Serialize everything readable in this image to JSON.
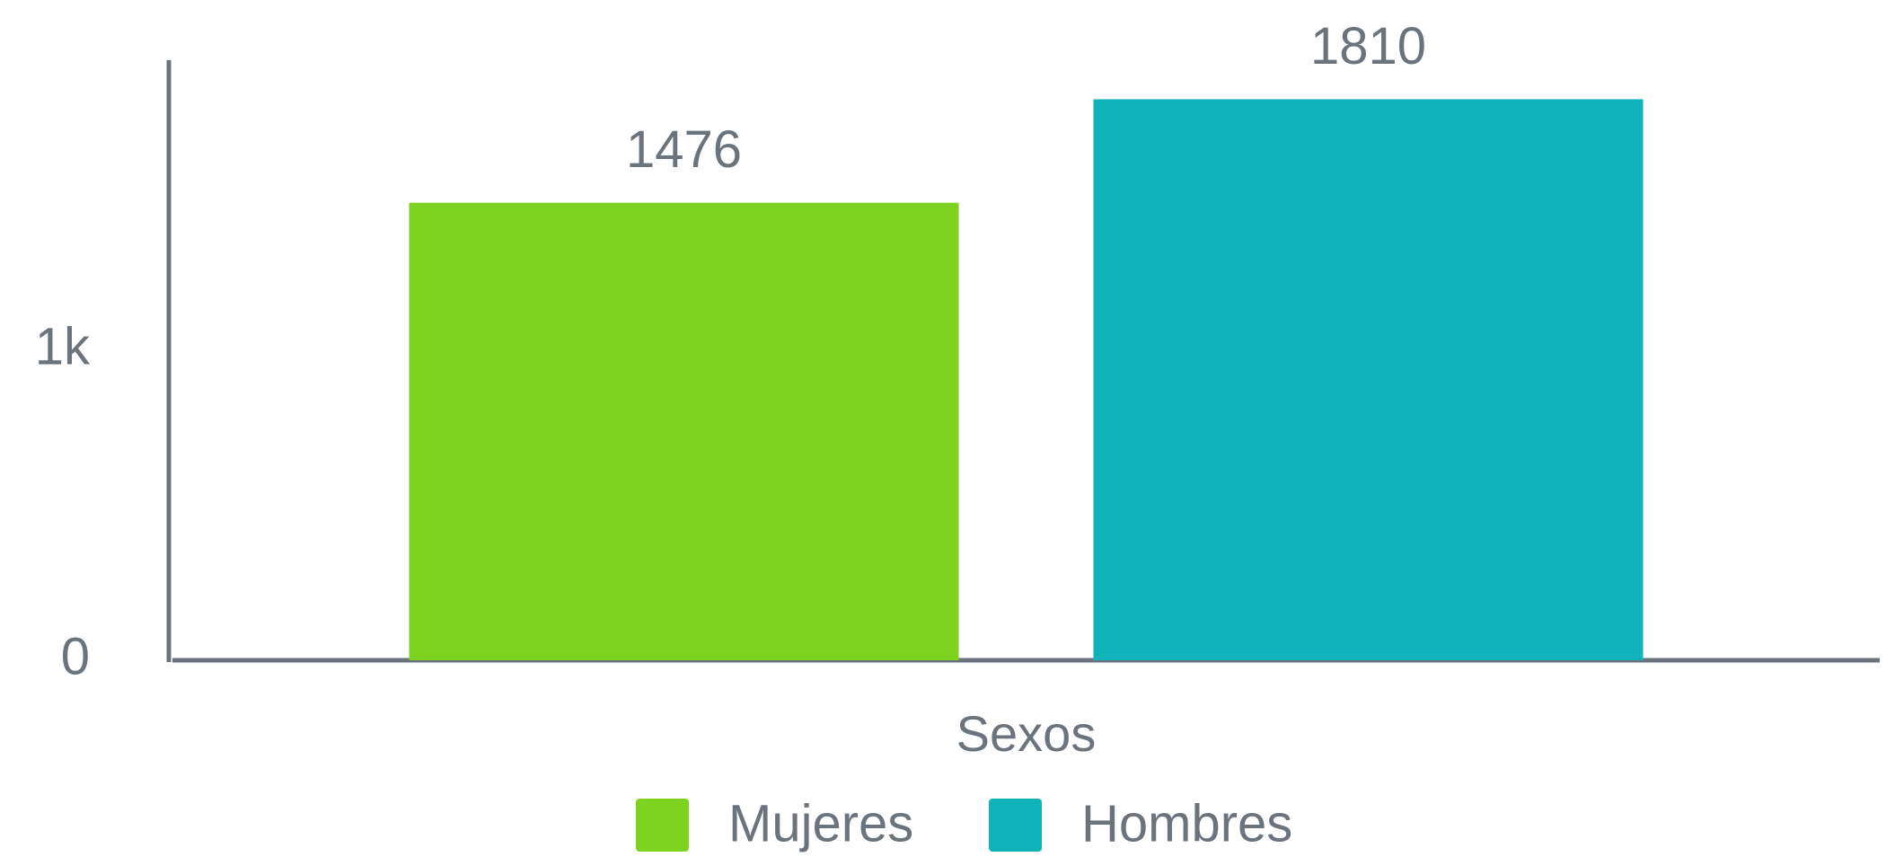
{
  "chart_data": {
    "type": "bar",
    "categories": [
      "Sexos"
    ],
    "series": [
      {
        "name": "Mujeres",
        "color": "#7ed321",
        "values": [
          1476
        ]
      },
      {
        "name": "Hombres",
        "color": "#11b3bb",
        "values": [
          1810
        ]
      }
    ],
    "ylim": [
      0,
      1936
    ],
    "yticks": [
      0,
      {
        "value": 1000,
        "label": "1k"
      }
    ],
    "grid": false,
    "legend": "bottom"
  }
}
